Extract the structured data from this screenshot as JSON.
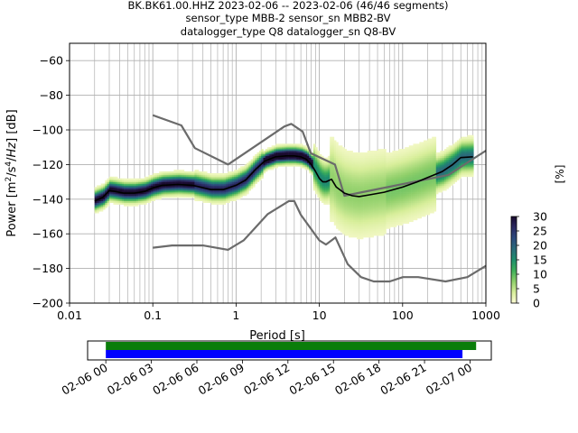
{
  "header": {
    "line1": "BK.BK61.00.HHZ   2023-02-06 -- 2023-02-06  (46/46 segments)",
    "line2": "sensor_type MBB-2 sensor_sn MBB2-BV",
    "line3": "datalogger_type Q8 datalogger_sn Q8-BV"
  },
  "chart_data": [
    {
      "type": "heatmap",
      "xscale": "log",
      "xlabel": "Period [s]",
      "ylabel": "Power [m²/s⁴/Hz] [dB]",
      "xlim": [
        0.01,
        1000
      ],
      "ylim": [
        -200,
        -50
      ],
      "x_ticks": [
        "0.01",
        "0.1",
        "1",
        "10",
        "100",
        "1000"
      ],
      "y_ticks": [
        "−200",
        "−180",
        "−160",
        "−140",
        "−120",
        "−100",
        "−80",
        "−60"
      ],
      "grid": true,
      "colorbar": {
        "label": "[%]",
        "range": [
          0,
          30
        ],
        "ticks": [
          "0",
          "5",
          "10",
          "15",
          "20",
          "25",
          "30"
        ],
        "colormap": [
          "#fdfcd5",
          "#d7ee9a",
          "#8fcf6a",
          "#3fb05a",
          "#1e8f6c",
          "#2a6b7a",
          "#2c4a7d",
          "#2b2a63",
          "#1a0b2e"
        ]
      },
      "series": [
        {
          "name": "",
          "role": "noise-model-high",
          "color": "#6b6b6b",
          "x": [
            0.1,
            0.22,
            0.32,
            0.8,
            3.8,
            4.6,
            6.3,
            7.9,
            15.4,
            20,
            354.8,
            1000
          ],
          "y": [
            -91.5,
            -97.4,
            -110.5,
            -120.0,
            -98.0,
            -96.5,
            -101.0,
            -113.5,
            -120.0,
            -138.0,
            -126.0,
            -112.0
          ]
        },
        {
          "name": "",
          "role": "noise-model-low",
          "color": "#6b6b6b",
          "x": [
            0.1,
            0.17,
            0.4,
            0.8,
            1.24,
            2.4,
            4.3,
            5.0,
            6.0,
            10.0,
            12.0,
            15.6,
            21.9,
            31.6,
            45.0,
            70.0,
            101.0,
            154.0,
            328.0,
            600.0,
            1000.0
          ],
          "y": [
            -168.0,
            -166.7,
            -166.7,
            -169.2,
            -163.7,
            -148.6,
            -141.1,
            -141.1,
            -149.0,
            -163.8,
            -166.2,
            -162.1,
            -177.5,
            -185.0,
            -187.5,
            -187.5,
            -185.0,
            -185.0,
            -187.5,
            -185.0,
            -178.5
          ],
          "xy": "pairs"
        },
        {
          "name": "",
          "role": "mean-psd",
          "color": "#000000",
          "x": [
            0.02,
            0.025,
            0.03,
            0.035,
            0.045,
            0.06,
            0.08,
            0.1,
            0.13,
            0.2,
            0.3,
            0.5,
            0.7,
            1.0,
            1.3,
            1.7,
            2.2,
            3.0,
            4.0,
            5.0,
            6.0,
            7.0,
            8.0,
            9.0,
            10.0,
            11.0,
            12.0,
            14.0,
            16.0,
            20.0,
            25.0,
            30.0,
            40.0,
            60.0,
            100.0,
            150.0,
            200.0,
            300.0,
            400.0,
            500.0,
            700.0
          ],
          "y": [
            -141.0,
            -139.0,
            -135.0,
            -135.5,
            -136.5,
            -136.5,
            -135.5,
            -133.5,
            -132.0,
            -131.5,
            -132.0,
            -134.5,
            -134.5,
            -132.0,
            -129.0,
            -123.0,
            -118.0,
            -115.5,
            -115.0,
            -115.0,
            -115.5,
            -117.0,
            -120.0,
            -124.0,
            -128.0,
            -130.0,
            -130.0,
            -128.5,
            -133.0,
            -136.5,
            -138.0,
            -138.5,
            -137.5,
            -136.0,
            -133.0,
            -130.0,
            -127.5,
            -124.0,
            -120.0,
            -116.0,
            -115.5
          ]
        }
      ],
      "time_coverage": {
        "x_ticks": [
          "02-06 00",
          "02-06 03",
          "02-06 06",
          "02-06 09",
          "02-06 12",
          "02-06 15",
          "02-06 18",
          "02-06 21",
          "02-07 00"
        ],
        "xlim_hours": [
          -1.2,
          25.4
        ],
        "bars": [
          {
            "name": "",
            "color": "#0a7d0a",
            "start_hours": 0.0,
            "end_hours": 24.4
          },
          {
            "name": "",
            "color": "#0000ff",
            "start_hours": 0.0,
            "end_hours": 23.5
          }
        ]
      }
    }
  ]
}
